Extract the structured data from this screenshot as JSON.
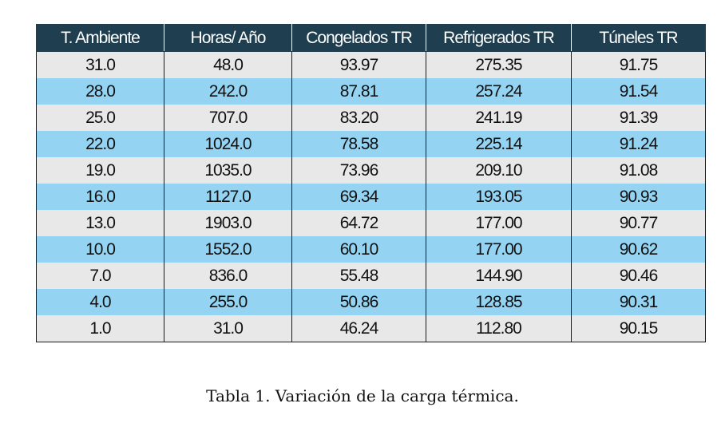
{
  "table": {
    "headers": [
      "T. Ambiente",
      "Horas/ Año",
      "Congelados TR",
      "Refrigerados TR",
      "Túneles TR"
    ],
    "rows": [
      [
        "31.0",
        "48.0",
        "93.97",
        "275.35",
        "91.75"
      ],
      [
        "28.0",
        "242.0",
        "87.81",
        "257.24",
        "91.54"
      ],
      [
        "25.0",
        "707.0",
        "83.20",
        "241.19",
        "91.39"
      ],
      [
        "22.0",
        "1024.0",
        "78.58",
        "225.14",
        "91.24"
      ],
      [
        "19.0",
        "1035.0",
        "73.96",
        "209.10",
        "91.08"
      ],
      [
        "16.0",
        "1127.0",
        "69.34",
        "193.05",
        "90.93"
      ],
      [
        "13.0",
        "1903.0",
        "64.72",
        "177.00",
        "90.77"
      ],
      [
        "10.0",
        "1552.0",
        "60.10",
        "177.00",
        "90.62"
      ],
      [
        "7.0",
        "836.0",
        "55.48",
        "144.90",
        "90.46"
      ],
      [
        "4.0",
        "255.0",
        "50.86",
        "128.85",
        "90.31"
      ],
      [
        "1.0",
        "31.0",
        "46.24",
        "112.80",
        "90.15"
      ]
    ]
  },
  "caption": "Tabla 1. Variación de la carga térmica.",
  "colors": {
    "header_bg": "#1f3f50",
    "row_odd": "#e8e8e8",
    "row_even": "#94d4f2"
  }
}
